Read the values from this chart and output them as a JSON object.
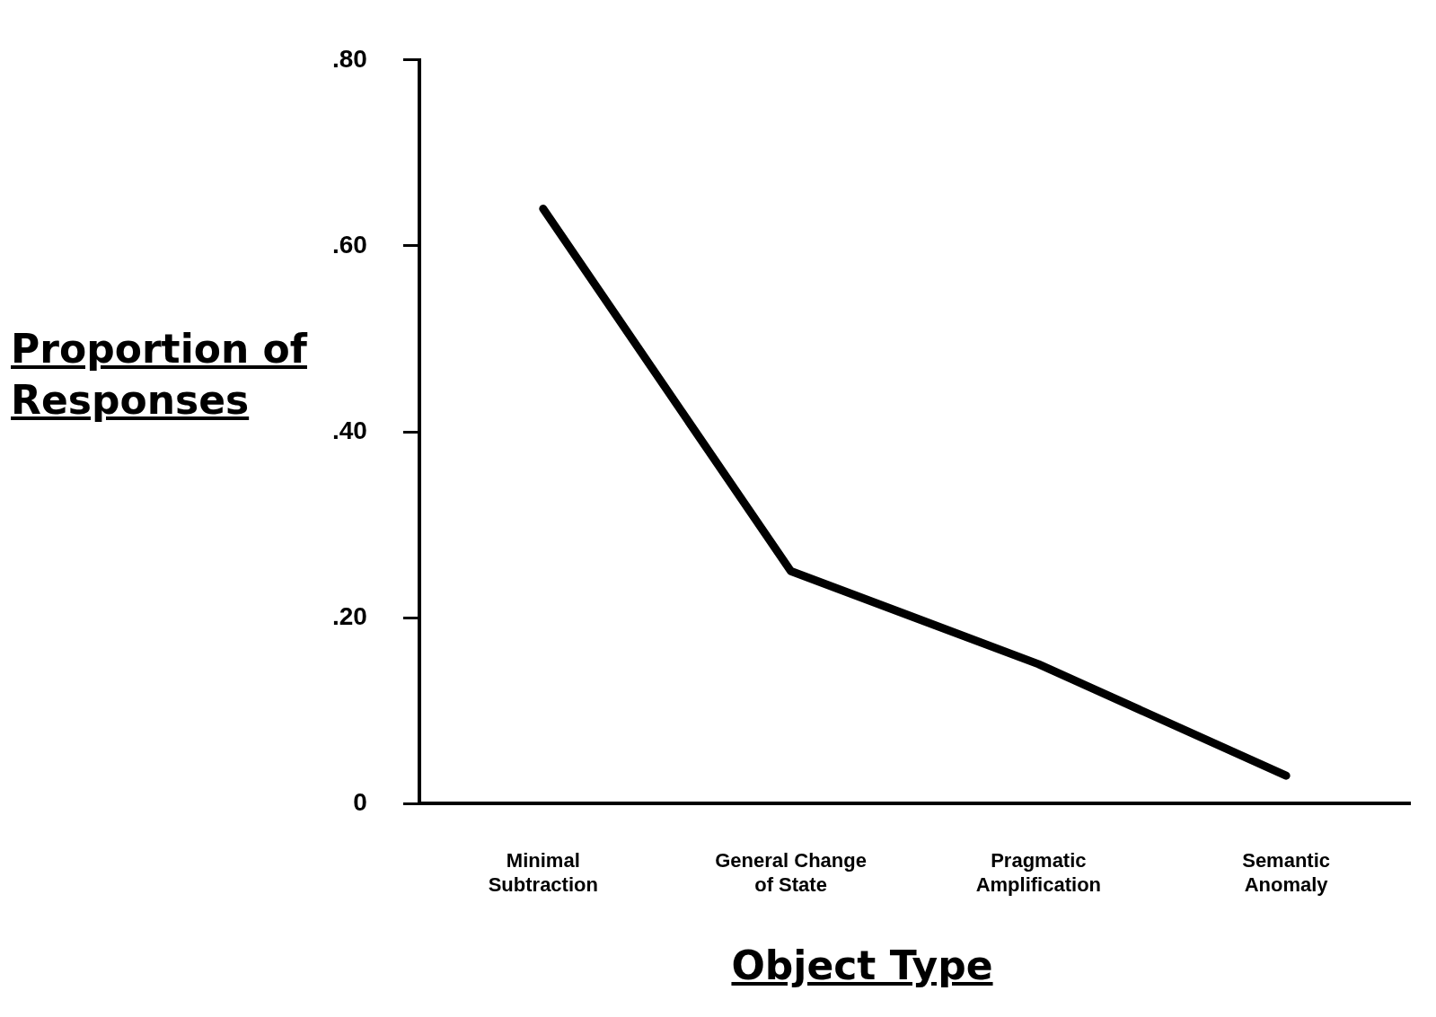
{
  "chart_data": {
    "type": "line",
    "xlabel": "Object Type",
    "ylabel": "Proportion of Responses",
    "categories": [
      "Minimal\nSubtraction",
      "General Change\nof State",
      "Pragmatic\nAmplification",
      "Semantic\nAnomaly"
    ],
    "series": [
      {
        "color": "#000000",
        "values": [
          0.64,
          0.25,
          0.15,
          0.03
        ]
      }
    ],
    "ylim": [
      0,
      0.8
    ],
    "yticks": [
      0,
      {
        "value": 0.2,
        "label": ".20"
      },
      {
        "value": 0.4,
        "label": ".40"
      },
      {
        "value": 0.6,
        "label": ".60"
      },
      {
        "value": 0.8,
        "label": ".80"
      }
    ],
    "grid": false,
    "legend": false,
    "marker": "none",
    "line_style": "solid"
  }
}
